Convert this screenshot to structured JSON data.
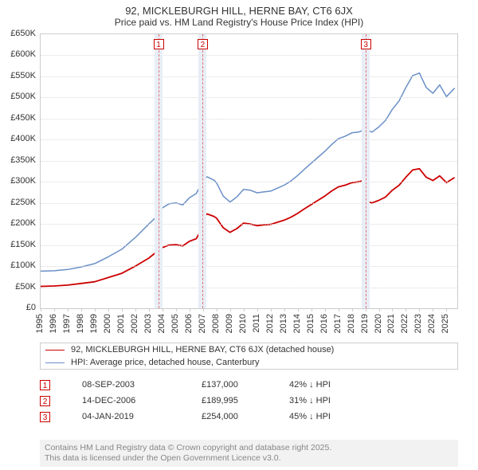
{
  "title": "92, MICKLEBURGH HILL, HERNE BAY, CT6 6JX",
  "subtitle": "Price paid vs. HM Land Registry's House Price Index (HPI)",
  "chart": {
    "type": "line",
    "x_min": 1995,
    "x_max": 2025.8,
    "y_min": 0,
    "y_max": 650000,
    "y_ticks": [
      0,
      50000,
      100000,
      150000,
      200000,
      250000,
      300000,
      350000,
      400000,
      450000,
      500000,
      550000,
      600000,
      650000
    ],
    "y_tick_labels": [
      "£0",
      "£50K",
      "£100K",
      "£150K",
      "£200K",
      "£250K",
      "£300K",
      "£350K",
      "£400K",
      "£450K",
      "£500K",
      "£550K",
      "£600K",
      "£650K"
    ],
    "x_ticks": [
      1995,
      1996,
      1997,
      1998,
      1999,
      2000,
      2001,
      2002,
      2003,
      2004,
      2005,
      2006,
      2007,
      2008,
      2009,
      2010,
      2011,
      2012,
      2013,
      2014,
      2015,
      2016,
      2017,
      2018,
      2019,
      2020,
      2021,
      2022,
      2023,
      2024,
      2025
    ],
    "grid_color": "#d9d9d9",
    "border_color": "#cccccc",
    "bg_color": "#ffffff",
    "label_fontsize": 11,
    "title_fontsize": 13,
    "series": {
      "hpi": {
        "label": "HPI: Average price, detached house, Canterbury",
        "color": "#6a8fc7",
        "width": 1.5,
        "points": [
          [
            1995,
            88000
          ],
          [
            1996,
            89000
          ],
          [
            1997,
            92000
          ],
          [
            1998,
            98000
          ],
          [
            1999,
            106000
          ],
          [
            2000,
            122000
          ],
          [
            2001,
            140000
          ],
          [
            2002,
            168000
          ],
          [
            2003,
            200000
          ],
          [
            2003.5,
            215000
          ],
          [
            2004,
            238000
          ],
          [
            2004.5,
            248000
          ],
          [
            2005,
            250000
          ],
          [
            2005.5,
            245000
          ],
          [
            2006,
            262000
          ],
          [
            2006.5,
            272000
          ],
          [
            2007,
            302000
          ],
          [
            2007.3,
            312000
          ],
          [
            2007.8,
            304000
          ],
          [
            2008,
            298000
          ],
          [
            2008.5,
            266000
          ],
          [
            2009,
            252000
          ],
          [
            2009.5,
            264000
          ],
          [
            2010,
            282000
          ],
          [
            2010.5,
            280000
          ],
          [
            2011,
            274000
          ],
          [
            2011.5,
            276000
          ],
          [
            2012,
            278000
          ],
          [
            2012.5,
            285000
          ],
          [
            2013,
            292000
          ],
          [
            2013.5,
            302000
          ],
          [
            2014,
            315000
          ],
          [
            2014.5,
            330000
          ],
          [
            2015,
            344000
          ],
          [
            2015.5,
            358000
          ],
          [
            2016,
            372000
          ],
          [
            2016.5,
            388000
          ],
          [
            2017,
            402000
          ],
          [
            2017.5,
            408000
          ],
          [
            2018,
            416000
          ],
          [
            2018.5,
            418000
          ],
          [
            2019,
            424000
          ],
          [
            2019.5,
            418000
          ],
          [
            2020,
            430000
          ],
          [
            2020.5,
            446000
          ],
          [
            2021,
            472000
          ],
          [
            2021.5,
            492000
          ],
          [
            2022,
            524000
          ],
          [
            2022.5,
            552000
          ],
          [
            2023,
            558000
          ],
          [
            2023.5,
            524000
          ],
          [
            2024,
            510000
          ],
          [
            2024.5,
            530000
          ],
          [
            2025,
            502000
          ],
          [
            2025.6,
            522000
          ]
        ]
      },
      "property": {
        "label": "92, MICKLEBURGH HILL, HERNE BAY, CT6 6JX (detached house)",
        "color": "#cc0000",
        "width": 1.8,
        "points": [
          [
            1995,
            52000
          ],
          [
            1996,
            53000
          ],
          [
            1997,
            55000
          ],
          [
            1998,
            59000
          ],
          [
            1999,
            63000
          ],
          [
            2000,
            73000
          ],
          [
            2001,
            83000
          ],
          [
            2002,
            100000
          ],
          [
            2003,
            119000
          ],
          [
            2003.69,
            137000
          ],
          [
            2004,
            144000
          ],
          [
            2004.5,
            150000
          ],
          [
            2005,
            151000
          ],
          [
            2005.5,
            148000
          ],
          [
            2006,
            159000
          ],
          [
            2006.5,
            165000
          ],
          [
            2006.95,
            189995
          ],
          [
            2007,
            216000
          ],
          [
            2007.3,
            224000
          ],
          [
            2007.8,
            218000
          ],
          [
            2008,
            214000
          ],
          [
            2008.5,
            191000
          ],
          [
            2009,
            180000
          ],
          [
            2009.5,
            189000
          ],
          [
            2010,
            202000
          ],
          [
            2010.5,
            200000
          ],
          [
            2011,
            196000
          ],
          [
            2011.5,
            198000
          ],
          [
            2012,
            199000
          ],
          [
            2012.5,
            204000
          ],
          [
            2013,
            209000
          ],
          [
            2013.5,
            216000
          ],
          [
            2014,
            225000
          ],
          [
            2014.5,
            236000
          ],
          [
            2015,
            246000
          ],
          [
            2015.5,
            256000
          ],
          [
            2016,
            266000
          ],
          [
            2016.5,
            278000
          ],
          [
            2017,
            288000
          ],
          [
            2017.5,
            292000
          ],
          [
            2018,
            298000
          ],
          [
            2018.5,
            300000
          ],
          [
            2019.01,
            304000
          ],
          [
            2019.02,
            254000
          ],
          [
            2019.5,
            250000
          ],
          [
            2020,
            256000
          ],
          [
            2020.5,
            264000
          ],
          [
            2021,
            280000
          ],
          [
            2021.5,
            292000
          ],
          [
            2022,
            311000
          ],
          [
            2022.5,
            328000
          ],
          [
            2023,
            331000
          ],
          [
            2023.5,
            311000
          ],
          [
            2024,
            303000
          ],
          [
            2024.5,
            314000
          ],
          [
            2025,
            298000
          ],
          [
            2025.6,
            310000
          ]
        ]
      }
    },
    "sale_markers": [
      {
        "id": "1",
        "x": 2003.69
      },
      {
        "id": "2",
        "x": 2006.95
      },
      {
        "id": "3",
        "x": 2019.01
      }
    ],
    "band_color": "#e8eef6",
    "dashed_line_color": "#e57373",
    "marker_border": "#cc0000"
  },
  "legend": {
    "border_color": "#cccccc"
  },
  "events": [
    {
      "id": "1",
      "date": "08-SEP-2003",
      "price": "£137,000",
      "delta": "42% ↓ HPI"
    },
    {
      "id": "2",
      "date": "14-DEC-2006",
      "price": "£189,995",
      "delta": "31% ↓ HPI"
    },
    {
      "id": "3",
      "date": "04-JAN-2019",
      "price": "£254,000",
      "delta": "45% ↓ HPI"
    }
  ],
  "footer": {
    "line1": "Contains HM Land Registry data © Crown copyright and database right 2025.",
    "line2": "This data is licensed under the Open Government Licence v3.0.",
    "bg": "#f2f2f2",
    "color": "#888888"
  }
}
